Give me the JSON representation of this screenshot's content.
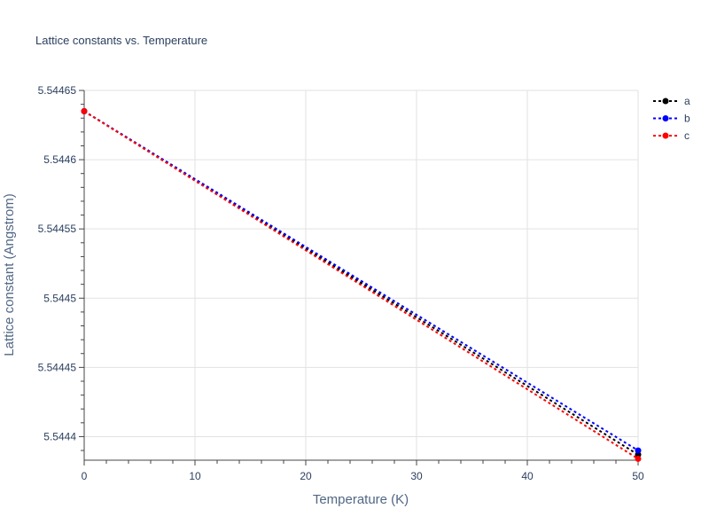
{
  "chart_data": {
    "type": "line",
    "title": "Lattice constants vs. Temperature",
    "xlabel": "Temperature (K)",
    "ylabel": "Lattice constant (Angstrom)",
    "xlim": [
      0,
      50
    ],
    "ylim": [
      5.544383,
      5.54465
    ],
    "xticks": [
      "0",
      "10",
      "20",
      "30",
      "40",
      "50"
    ],
    "yticks": [
      "5.5444",
      "5.54445",
      "5.5445",
      "5.54455",
      "5.5446",
      "5.54465"
    ],
    "grid": true,
    "legend_position": "top-right",
    "line_style": "dotted",
    "series": [
      {
        "name": "a",
        "color": "#000000",
        "x": [
          0,
          50
        ],
        "y": [
          5.544635,
          5.544387
        ]
      },
      {
        "name": "b",
        "color": "#0000ff",
        "x": [
          0,
          50
        ],
        "y": [
          5.544635,
          5.54439
        ]
      },
      {
        "name": "c",
        "color": "#ff0000",
        "x": [
          0,
          50
        ],
        "y": [
          5.544635,
          5.544384
        ]
      }
    ]
  }
}
